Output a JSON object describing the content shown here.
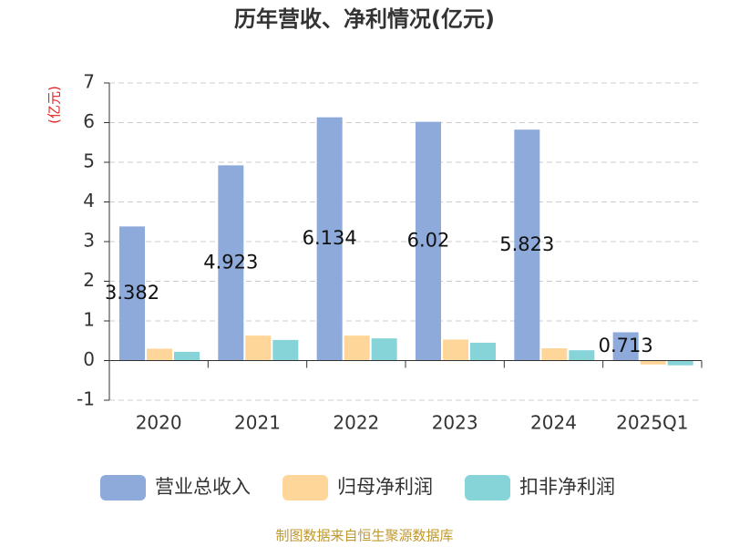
{
  "chart_data": {
    "type": "bar",
    "title": "历年营收、净利情况(亿元)",
    "y_label": "(亿元)",
    "categories": [
      "2020",
      "2021",
      "2022",
      "2023",
      "2024",
      "2025Q1"
    ],
    "series": [
      {
        "name": "营业总收入",
        "color": "#8eaadb",
        "values": [
          3.382,
          4.923,
          6.134,
          6.02,
          5.823,
          0.713
        ],
        "show_values": true
      },
      {
        "name": "归母净利润",
        "color": "#ffd699",
        "values": [
          0.3,
          0.63,
          0.63,
          0.53,
          0.31,
          -0.1
        ]
      },
      {
        "name": "扣非净利润",
        "color": "#86d4d8",
        "values": [
          0.22,
          0.52,
          0.56,
          0.45,
          0.26,
          -0.12
        ]
      }
    ],
    "ylim": [
      -1,
      7
    ],
    "yticks": [
      -1,
      0,
      1,
      2,
      3,
      4,
      5,
      6,
      7
    ],
    "grid": true,
    "source": "制图数据来自恒生聚源数据库"
  }
}
